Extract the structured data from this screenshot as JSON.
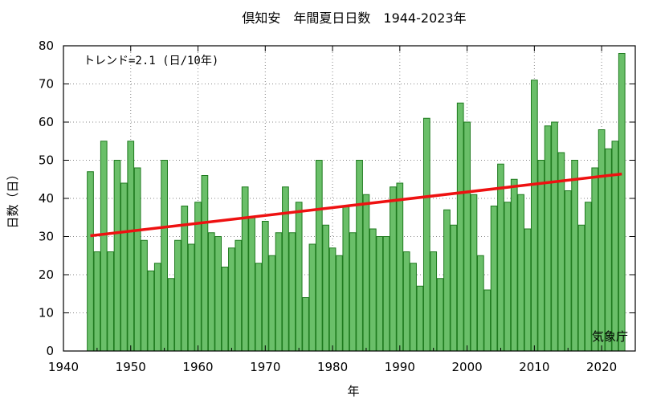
{
  "chart_data": {
    "type": "bar",
    "title": "倶知安　年間夏日日数　1944-2023年",
    "xlabel": "年",
    "ylabel": "日数（日）",
    "trend_label": "トレンド=2.1 (日/10年)",
    "credit": "気象庁",
    "xlim": [
      1940,
      2025
    ],
    "ylim": [
      0,
      80
    ],
    "xticks": [
      1940,
      1950,
      1960,
      1970,
      1980,
      1990,
      2000,
      2010,
      2020
    ],
    "yticks": [
      0,
      10,
      20,
      30,
      40,
      50,
      60,
      70,
      80
    ],
    "grid": true,
    "bar_color": "#6abf69",
    "bar_edge_color": "#1e7a1e",
    "trend_color": "#ee1111",
    "years": [
      1944,
      1945,
      1946,
      1947,
      1948,
      1949,
      1950,
      1951,
      1952,
      1953,
      1954,
      1955,
      1956,
      1957,
      1958,
      1959,
      1960,
      1961,
      1962,
      1963,
      1964,
      1965,
      1966,
      1967,
      1968,
      1969,
      1970,
      1971,
      1972,
      1973,
      1974,
      1975,
      1976,
      1977,
      1978,
      1979,
      1980,
      1981,
      1982,
      1983,
      1984,
      1985,
      1986,
      1987,
      1988,
      1989,
      1990,
      1991,
      1992,
      1993,
      1994,
      1995,
      1996,
      1997,
      1998,
      1999,
      2000,
      2001,
      2002,
      2003,
      2004,
      2005,
      2006,
      2007,
      2008,
      2009,
      2010,
      2011,
      2012,
      2013,
      2014,
      2015,
      2016,
      2017,
      2018,
      2019,
      2020,
      2021,
      2022,
      2023
    ],
    "values": [
      47,
      26,
      55,
      26,
      50,
      44,
      55,
      48,
      29,
      21,
      23,
      50,
      19,
      29,
      38,
      28,
      39,
      46,
      31,
      30,
      22,
      27,
      29,
      43,
      35,
      23,
      34,
      25,
      31,
      43,
      31,
      39,
      14,
      28,
      50,
      33,
      27,
      25,
      38,
      31,
      50,
      41,
      32,
      30,
      30,
      43,
      44,
      26,
      23,
      17,
      61,
      26,
      19,
      37,
      33,
      65,
      60,
      41,
      25,
      16,
      38,
      49,
      39,
      45,
      41,
      32,
      71,
      50,
      59,
      60,
      52,
      42,
      50,
      33,
      39,
      48,
      58,
      53,
      55,
      78
    ],
    "trend": {
      "x": [
        1944,
        2023
      ],
      "y": [
        30.2,
        46.4
      ]
    }
  }
}
